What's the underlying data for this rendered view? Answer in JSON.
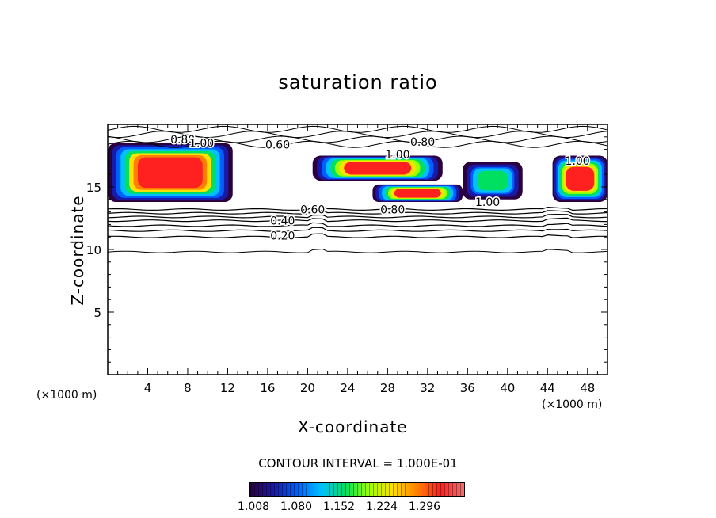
{
  "chart_data": {
    "type": "contour",
    "title": "saturation ratio",
    "xlabel": "X-coordinate",
    "ylabel": "Z-coordinate",
    "x_unit_left": "(×1000 m)",
    "x_unit_right": "(×1000 m)",
    "xlim": [
      0,
      50
    ],
    "ylim": [
      0,
      20
    ],
    "x_ticks": [
      4,
      8,
      12,
      16,
      20,
      24,
      28,
      32,
      36,
      40,
      44,
      48
    ],
    "x_tick_labels": [
      "4",
      "8",
      "12",
      "16",
      "20",
      "24",
      "28",
      "32",
      "36",
      "40",
      "44",
      "48"
    ],
    "y_ticks": [
      5,
      10,
      15
    ],
    "y_tick_labels": [
      "5",
      "10",
      "15"
    ],
    "contour_interval_label": "CONTOUR INTERVAL = 1.000E-01",
    "contour_labels": [
      {
        "text": "0.80",
        "x": 7.5,
        "z": 18.8
      },
      {
        "text": "1.00",
        "x": 9.4,
        "z": 18.5
      },
      {
        "text": "0.60",
        "x": 17.0,
        "z": 18.4
      },
      {
        "text": "0.80",
        "x": 31.5,
        "z": 18.6
      },
      {
        "text": "1.00",
        "x": 29.0,
        "z": 17.6
      },
      {
        "text": "1.00",
        "x": 47.0,
        "z": 17.1
      },
      {
        "text": "1.00",
        "x": 38.0,
        "z": 13.8
      },
      {
        "text": "0.80",
        "x": 28.5,
        "z": 13.2
      },
      {
        "text": "0.60",
        "x": 20.5,
        "z": 13.2
      },
      {
        "text": "0.40",
        "x": 17.5,
        "z": 12.3
      },
      {
        "text": "0.20",
        "x": 17.5,
        "z": 11.1
      }
    ],
    "contour_levels_z_at_edge": [
      9.8,
      11.0,
      11.5,
      11.9,
      12.3,
      12.6,
      12.9,
      13.2
    ],
    "shaded_regions": [
      {
        "x": [
          0,
          12.5
        ],
        "z": [
          13.8,
          18.5
        ],
        "peak": 1.3
      },
      {
        "x": [
          20.5,
          33.5
        ],
        "z": [
          15.5,
          17.5
        ],
        "peak": 1.28
      },
      {
        "x": [
          26.5,
          35.5
        ],
        "z": [
          13.8,
          15.2
        ],
        "peak": 1.28
      },
      {
        "x": [
          35.5,
          41.5
        ],
        "z": [
          14.0,
          17.0
        ],
        "peak": 1.15
      },
      {
        "x": [
          44.5,
          50
        ],
        "z": [
          13.8,
          17.5
        ],
        "peak": 1.28
      }
    ],
    "colorbar": {
      "min": 1.008,
      "max": 1.3,
      "ticks": [
        "1.008",
        "1.080",
        "1.152",
        "1.224",
        "1.296"
      ],
      "colors": [
        "#2a0040",
        "#1a1aa8",
        "#0060ff",
        "#00c0ff",
        "#00e060",
        "#a0ff00",
        "#ffe000",
        "#ff8000",
        "#ff2020",
        "#f07070"
      ]
    }
  }
}
